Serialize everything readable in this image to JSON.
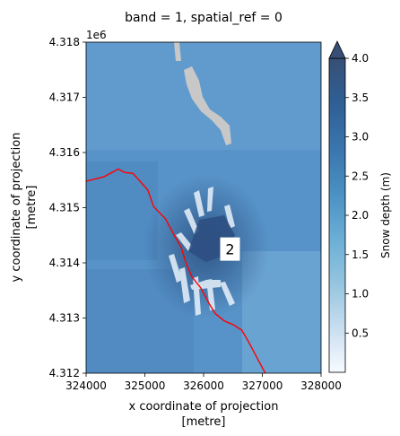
{
  "chart_data": {
    "type": "heatmap",
    "title": "band = 1, spatial_ref = 0",
    "xlabel_line1": "x coordinate of projection",
    "xlabel_line2": "[metre]",
    "ylabel_line1": "y coordinate of projection",
    "ylabel_line2": "[metre]",
    "xlim": [
      324000,
      328000
    ],
    "ylim": [
      4312000,
      4318000
    ],
    "y_offset_label": "1e6",
    "x_ticks": [
      324000,
      325000,
      326000,
      327000,
      328000
    ],
    "x_tick_labels": [
      "324000",
      "325000",
      "326000",
      "327000",
      "328000"
    ],
    "y_ticks": [
      4312000,
      4313000,
      4314000,
      4315000,
      4316000,
      4317000,
      4318000
    ],
    "y_tick_labels": [
      "4.312",
      "4.313",
      "4.314",
      "4.315",
      "4.316",
      "4.317",
      "4.318"
    ],
    "colorbar": {
      "label": "Snow depth (m)",
      "range": [
        0,
        4.0
      ],
      "extend": "max",
      "ticks": [
        0.5,
        1.0,
        1.5,
        2.0,
        2.5,
        3.0,
        3.5,
        4.0
      ],
      "tick_labels": [
        "0.5",
        "1.0",
        "1.5",
        "2.0",
        "2.5",
        "3.0",
        "3.5",
        "4.0"
      ],
      "colors": [
        "#f7fbff",
        "#c8ddf0",
        "#94c4df",
        "#6aaed6",
        "#4a90c2",
        "#3a75ad",
        "#2f5f95",
        "#384f75"
      ]
    },
    "no_data_color": "#c8c8c8",
    "boundary_line_color": "#ff0000",
    "boundary_line": {
      "x": [
        324000,
        324300,
        324550,
        324650,
        324800,
        325050,
        325150,
        325350,
        325500,
        325620,
        325700,
        325800,
        325950,
        326100,
        326200,
        326350,
        326500,
        326650,
        326750,
        326850,
        326950,
        327050
      ],
      "y": [
        4315480,
        4315560,
        4315700,
        4315640,
        4315620,
        4315320,
        4315020,
        4314800,
        4314500,
        4314280,
        4314000,
        4313750,
        4313550,
        4313250,
        4313080,
        4312950,
        4312880,
        4312780,
        4312600,
        4312400,
        4312200,
        4312000
      ]
    },
    "annotation": {
      "text": "2",
      "x": 326450,
      "y": 4314250,
      "color": "#e02020"
    }
  }
}
